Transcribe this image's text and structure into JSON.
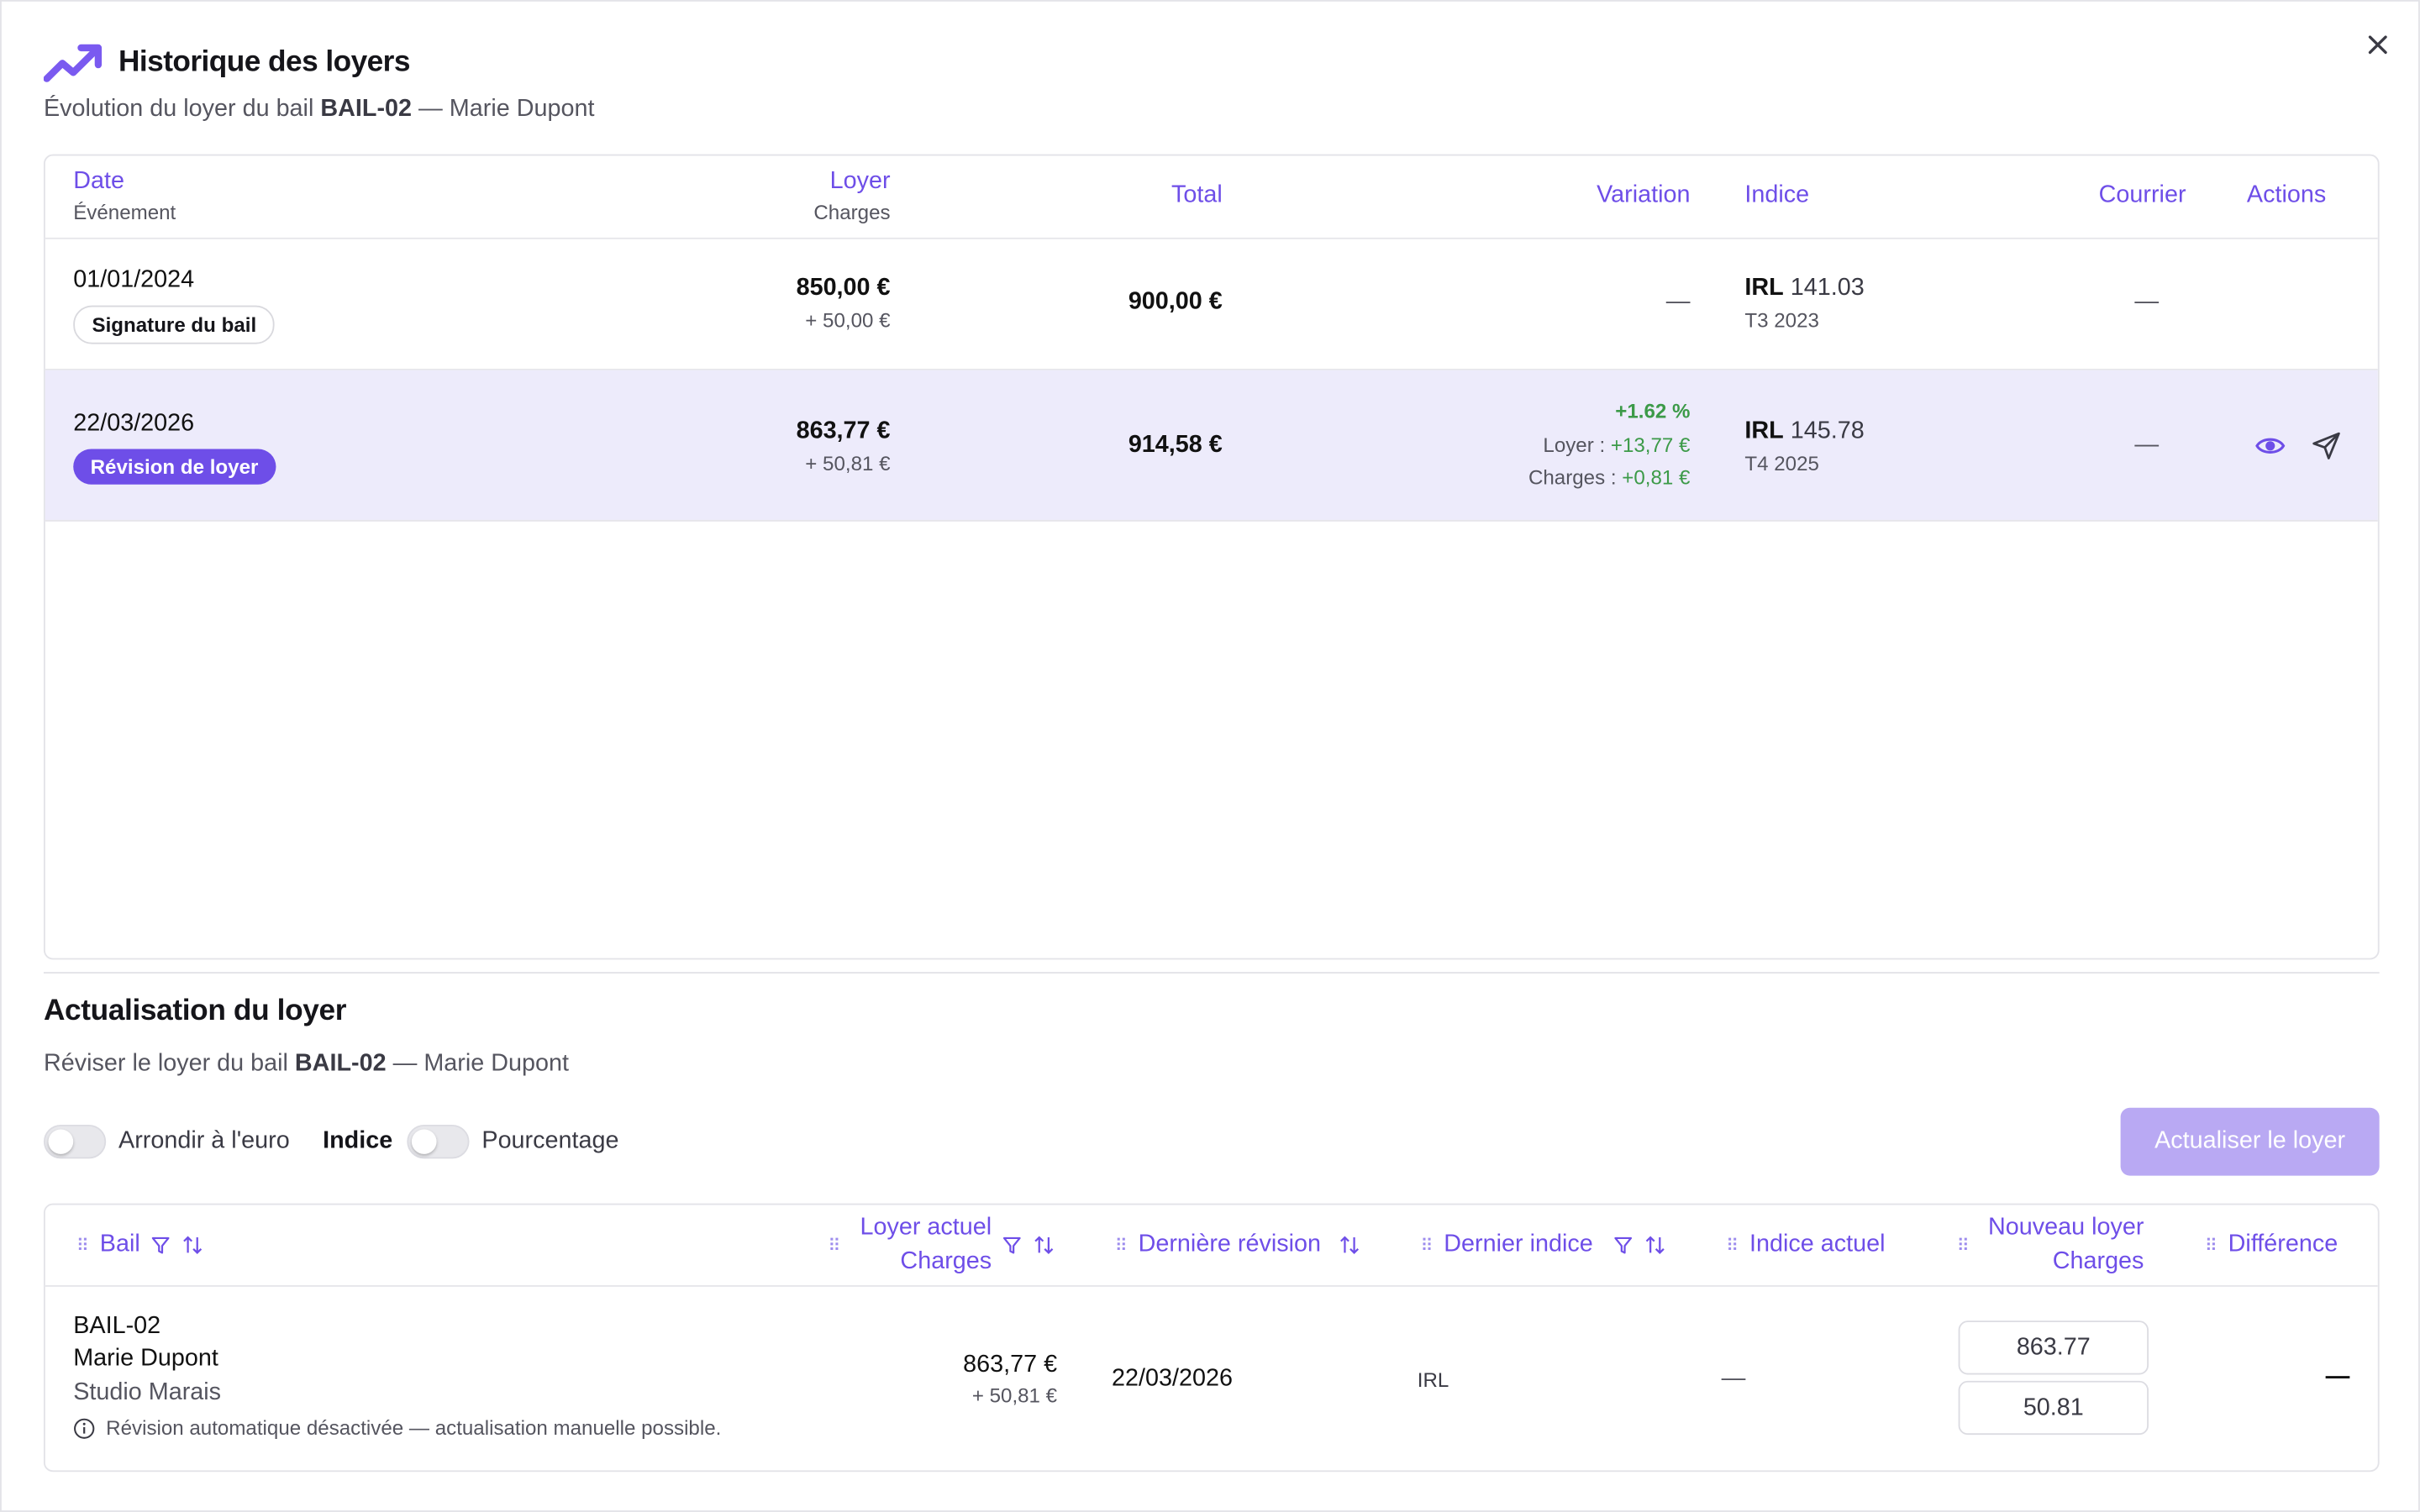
{
  "header": {
    "title": "Historique des loyers",
    "subtitle_prefix": "Évolution du loyer du bail ",
    "lease_id": "BAIL-02",
    "subtitle_suffix": " — Marie Dupont"
  },
  "history": {
    "columns": {
      "date": "Date",
      "event": "Événement",
      "rent": "Loyer",
      "charges": "Charges",
      "total": "Total",
      "variation": "Variation",
      "index": "Indice",
      "letter": "Courrier",
      "actions": "Actions"
    },
    "rows": [
      {
        "date": "01/01/2024",
        "event": "Signature du bail",
        "rent": "850,00 €",
        "charges": "+ 50,00 €",
        "total": "900,00 €",
        "variation": "—",
        "index_name": "IRL",
        "index_value": "141.03",
        "index_period": "T3 2023",
        "letter": "—"
      },
      {
        "date": "22/03/2026",
        "event": "Révision de loyer",
        "rent": "863,77 €",
        "charges": "+ 50,81 €",
        "total": "914,58 €",
        "variation_pct": "+1.62 %",
        "variation_rent_label": "Loyer :",
        "variation_rent": "+13,77 €",
        "variation_charges_label": "Charges :",
        "variation_charges": "+0,81 €",
        "index_name": "IRL",
        "index_value": "145.78",
        "index_period": "T4 2025",
        "letter": "—",
        "action_icons": [
          "eye-icon",
          "send-icon"
        ]
      }
    ]
  },
  "update": {
    "title": "Actualisation du loyer",
    "subtitle_prefix": "Réviser le loyer du bail ",
    "lease_id": "BAIL-02",
    "subtitle_suffix": " — Marie Dupont",
    "round_label": "Arrondir à l'euro",
    "index_label": "Indice",
    "percent_label": "Pourcentage",
    "button_label": "Actualiser le loyer",
    "columns": {
      "lease": "Bail",
      "current_rent": "Loyer actuel",
      "current_charges": "Charges",
      "last_revision": "Dernière révision",
      "last_index": "Dernier indice",
      "current_index": "Indice actuel",
      "new_rent": "Nouveau loyer",
      "new_charges": "Charges",
      "difference": "Différence"
    },
    "row": {
      "lease_id": "BAIL-02",
      "tenant": "Marie Dupont",
      "property": "Studio Marais",
      "note": "Révision automatique désactivée — actualisation manuelle possible.",
      "current_rent": "863,77 €",
      "current_charges": "+ 50,81 €",
      "last_revision": "22/03/2026",
      "last_index": "IRL",
      "current_index": "—",
      "new_rent": "863.77",
      "new_charges": "50.81",
      "difference": "—"
    }
  },
  "colors": {
    "accent": "#6e4ee8",
    "highlight_row": "#edebfb",
    "positive": "#3c9a48",
    "button_disabled": "#b9a9f3"
  }
}
